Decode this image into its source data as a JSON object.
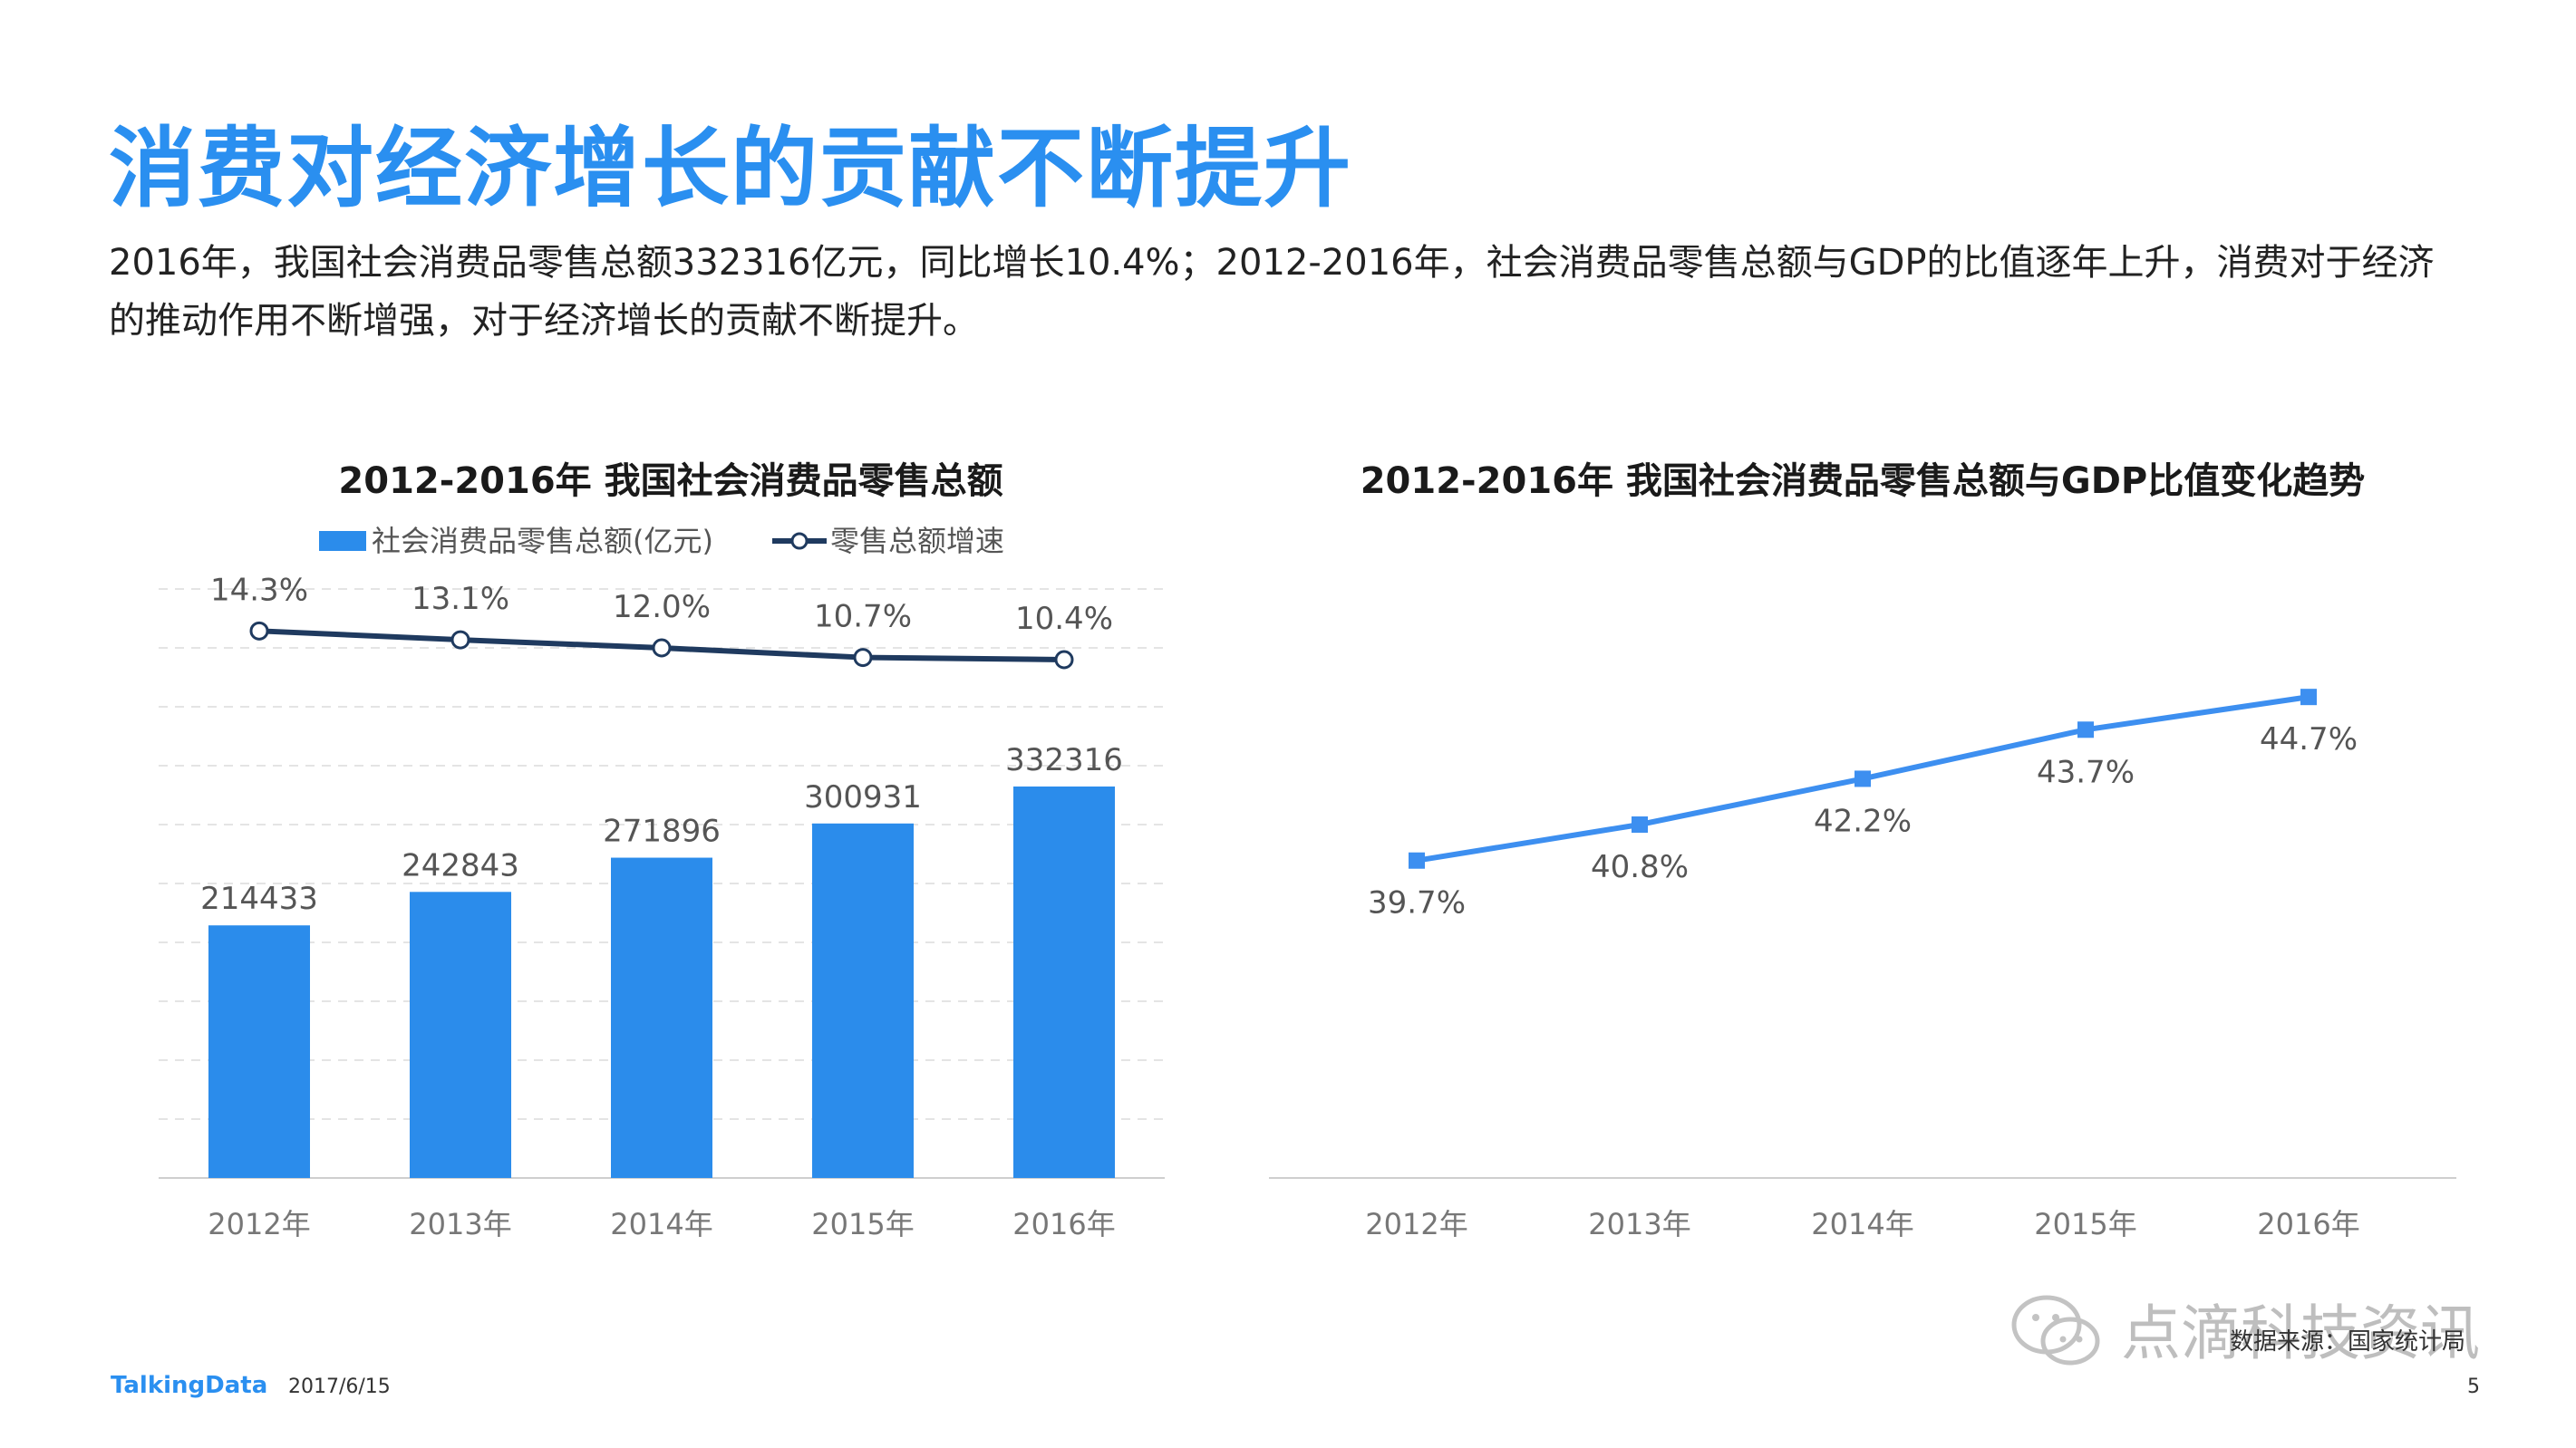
{
  "page": {
    "title": "消费对经济增长的贡献不断提升",
    "description": "2016年，我国社会消费品零售总额332316亿元，同比增长10.4%；2012-2016年，社会消费品零售总额与GDP的比值逐年上升，消费对于经济的推动作用不断增强，对于经济增长的贡献不断提升。",
    "source": "数据来源：国家统计局",
    "logo": "TalkingData",
    "date": "2017/6/15",
    "page_number": "5",
    "watermark": "点滴科技资讯"
  },
  "chart_data": [
    {
      "type": "bar",
      "title": "2012-2016年 我国社会消费品零售总额",
      "categories": [
        "2012年",
        "2013年",
        "2014年",
        "2015年",
        "2016年"
      ],
      "series": [
        {
          "name": "社会消费品零售总额(亿元)",
          "type": "bar",
          "values": [
            214433,
            242843,
            271896,
            300931,
            332316
          ],
          "labels": [
            "214433",
            "242843",
            "271896",
            "300931",
            "332316"
          ],
          "color": "#2b8ceb"
        },
        {
          "name": "零售总额增速",
          "type": "line",
          "values": [
            14.3,
            13.1,
            12.0,
            10.7,
            10.4
          ],
          "labels": [
            "14.3%",
            "13.1%",
            "12.0%",
            "10.7%",
            "10.4%"
          ],
          "color": "#1f3a5f"
        }
      ],
      "ylim": [
        0,
        500000
      ],
      "line_ylim": [
        -60,
        20
      ],
      "legend": "top",
      "grid": true
    },
    {
      "type": "line",
      "title": "2012-2016年 我国社会消费品零售总额与GDP比值变化趋势",
      "categories": [
        "2012年",
        "2013年",
        "2014年",
        "2015年",
        "2016年"
      ],
      "series": [
        {
          "type": "line",
          "values": [
            39.7,
            40.8,
            42.2,
            43.7,
            44.7
          ],
          "labels": [
            "39.7%",
            "40.8%",
            "42.2%",
            "43.7%",
            "44.7%"
          ],
          "color": "#3d8ff0"
        }
      ],
      "ylim": [
        30,
        48
      ],
      "grid": false
    }
  ],
  "colors": {
    "accent": "#2a8ff0",
    "bar": "#2b8ceb",
    "dark_line": "#1f3a5f",
    "gdp_line": "#3d8ff0"
  }
}
